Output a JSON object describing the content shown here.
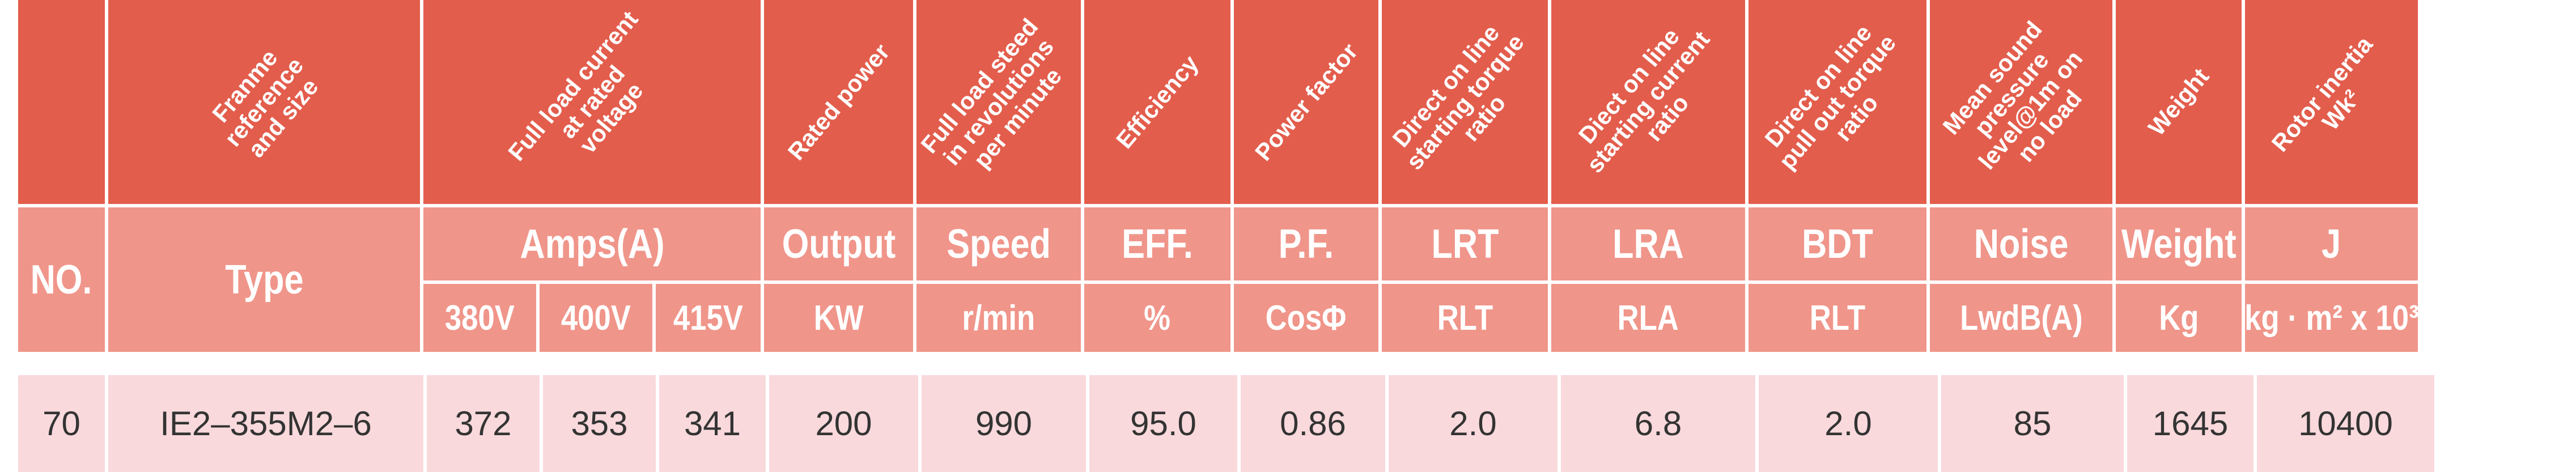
{
  "header": {
    "rotated": [
      [
        "Franme",
        "reference",
        "and size"
      ],
      [
        "Full load current",
        "at rated",
        "voltage"
      ],
      [
        "Rated power"
      ],
      [
        "Full load steed",
        "in revolutions",
        "per minute"
      ],
      [
        "Efficiency"
      ],
      [
        "Power factor"
      ],
      [
        "Direct on line",
        "starting torque",
        "ratio"
      ],
      [
        "Diect on line",
        "starting current",
        "ratio"
      ],
      [
        "Direct on line",
        "pull out torque",
        "ratio"
      ],
      [
        "Mean sound",
        "pressure",
        "level@1m on",
        "no load"
      ],
      [
        "Weight"
      ],
      [
        "Rotor inertia",
        "Wk²"
      ]
    ],
    "names": [
      "NO.",
      "Type",
      "Amps(A)",
      "Output",
      "Speed",
      "EFF.",
      "P.F.",
      "LRT",
      "LRA",
      "BDT",
      "Noise",
      "Weight",
      "J"
    ],
    "units": [
      "380V",
      "400V",
      "415V",
      "KW",
      "r/min",
      "%",
      "CosΦ",
      "RLT",
      "RLA",
      "RLT",
      "LwdB(A)",
      "Kg",
      "kg · m² x 10³"
    ]
  },
  "table": {
    "rows": [
      [
        "70",
        "IE2–355M2–6",
        "372",
        "353",
        "341",
        "200",
        "990",
        "95.0",
        "0.86",
        "2.0",
        "6.8",
        "2.0",
        "85",
        "1645",
        "10400"
      ]
    ]
  }
}
